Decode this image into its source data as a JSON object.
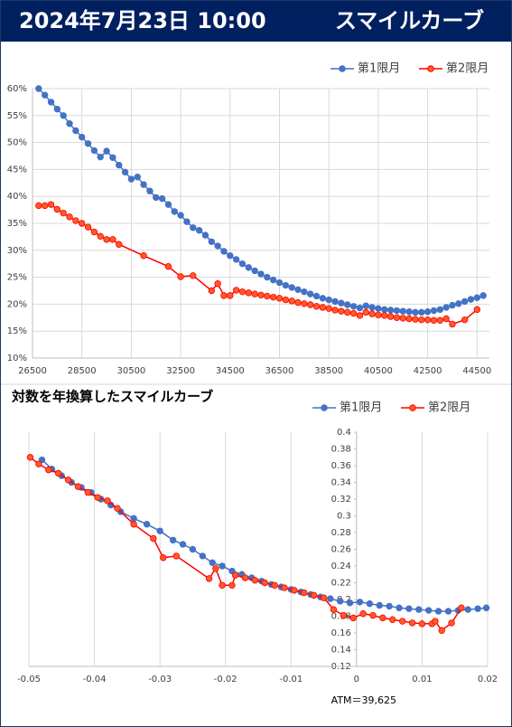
{
  "header": {
    "date": "2024年7月23日 10:00",
    "title": "スマイルカーブ"
  },
  "chart_data": [
    {
      "type": "line",
      "grid": "both",
      "legend": "top-right",
      "xlim": [
        26500,
        45000
      ],
      "xticks": [
        26500,
        28500,
        30500,
        32500,
        34500,
        36500,
        38500,
        40500,
        42500,
        44500
      ],
      "ylim": [
        10,
        60
      ],
      "yticks": [
        {
          "value": 10,
          "label": "10%"
        },
        {
          "value": 15,
          "label": "15%"
        },
        {
          "value": 20,
          "label": "20%"
        },
        {
          "value": 25,
          "label": "25%"
        },
        {
          "value": 30,
          "label": "30%"
        },
        {
          "value": 35,
          "label": "35%"
        },
        {
          "value": 40,
          "label": "40%"
        },
        {
          "value": 45,
          "label": "45%"
        },
        {
          "value": 50,
          "label": "50%"
        },
        {
          "value": 55,
          "label": "55%"
        },
        {
          "value": 60,
          "label": "60%"
        }
      ],
      "series": [
        {
          "name": "第1限月",
          "color": "#4472c4",
          "marker_fill": "#4472c4",
          "x": [
            26750,
            27000,
            27250,
            27500,
            27750,
            28000,
            28250,
            28500,
            28750,
            29000,
            29250,
            29500,
            29750,
            30000,
            30250,
            30500,
            30750,
            31000,
            31250,
            31500,
            31750,
            32000,
            32250,
            32500,
            32750,
            33000,
            33250,
            33500,
            33750,
            34000,
            34250,
            34500,
            34750,
            35000,
            35250,
            35500,
            35750,
            36000,
            36250,
            36500,
            36750,
            37000,
            37250,
            37500,
            37750,
            38000,
            38250,
            38500,
            38750,
            39000,
            39250,
            39500,
            39750,
            40000,
            40250,
            40500,
            40750,
            41000,
            41250,
            41500,
            41750,
            42000,
            42250,
            42500,
            42750,
            43000,
            43250,
            43500,
            43750,
            44000,
            44250,
            44500,
            44750
          ],
          "values": [
            60,
            58.8,
            57.5,
            56.2,
            55,
            53.5,
            52.2,
            51,
            49.8,
            48.5,
            47.3,
            48.4,
            47.2,
            45.8,
            44.5,
            43.2,
            43.6,
            42.2,
            41,
            39.8,
            39.6,
            38.5,
            37.2,
            36.5,
            35.3,
            34.2,
            33.7,
            32.8,
            31.6,
            30.8,
            29.8,
            29,
            28.3,
            27.5,
            26.8,
            26.2,
            25.6,
            25,
            24.5,
            24,
            23.5,
            23.1,
            22.7,
            22.3,
            21.9,
            21.5,
            21.1,
            20.8,
            20.5,
            20.2,
            19.9,
            19.6,
            19.3,
            19.7,
            19.4,
            19.2,
            19,
            18.9,
            18.8,
            18.7,
            18.6,
            18.5,
            18.5,
            18.6,
            18.8,
            19,
            19.4,
            19.8,
            20.1,
            20.5,
            20.9,
            21.2,
            21.6
          ]
        },
        {
          "name": "第2限月",
          "color": "#ff0000",
          "marker_fill": "#ff5a28",
          "x": [
            26750,
            27000,
            27250,
            27500,
            27750,
            28000,
            28250,
            28500,
            28750,
            29000,
            29250,
            29500,
            29750,
            30000,
            31000,
            32000,
            32500,
            33000,
            33750,
            34000,
            34250,
            34500,
            34750,
            35000,
            35250,
            35500,
            35750,
            36000,
            36250,
            36500,
            36750,
            37000,
            37250,
            37500,
            37750,
            38000,
            38250,
            38500,
            38750,
            39000,
            39250,
            39500,
            39750,
            40000,
            40250,
            40500,
            40750,
            41000,
            41250,
            41500,
            41750,
            42000,
            42250,
            42500,
            42750,
            43000,
            43250,
            43500,
            44000,
            44500
          ],
          "values": [
            38.3,
            38.3,
            38.5,
            37.6,
            36.9,
            36.2,
            35.5,
            35,
            34.3,
            33.4,
            32.6,
            32,
            32,
            31.1,
            29,
            27,
            25.1,
            25.3,
            22.5,
            23.8,
            21.6,
            21.6,
            22.6,
            22.3,
            22.1,
            21.9,
            21.7,
            21.5,
            21.3,
            21.1,
            20.8,
            20.6,
            20.3,
            20.1,
            19.9,
            19.6,
            19.4,
            19.2,
            18.9,
            18.7,
            18.5,
            18.3,
            17.9,
            18.5,
            18.2,
            18,
            17.9,
            17.7,
            17.5,
            17.4,
            17.3,
            17.2,
            17.1,
            17.1,
            17,
            17,
            17.3,
            16.3,
            17.1,
            19
          ]
        }
      ]
    },
    {
      "type": "line",
      "title": "対数を年換算したスマイルカーブ",
      "grid": "x",
      "legend": "top-right",
      "y_axis_crosses": 0,
      "annotation": "ATM＝39,625",
      "xlim": [
        -0.05,
        0.02
      ],
      "xticks": [
        -0.05,
        -0.04,
        -0.03,
        -0.02,
        -0.01,
        0,
        0.01,
        0.02
      ],
      "ylim": [
        0.12,
        0.4
      ],
      "yticks": [
        0.12,
        0.14,
        0.16,
        0.18,
        0.2,
        0.22,
        0.24,
        0.26,
        0.28,
        0.3,
        0.32,
        0.34,
        0.36,
        0.38,
        0.4
      ],
      "series": [
        {
          "name": "第1限月",
          "color": "#4472c4",
          "marker_fill": "#4472c4",
          "x": [
            -0.048,
            -0.0465,
            -0.045,
            -0.0435,
            -0.042,
            -0.0405,
            -0.039,
            -0.0375,
            -0.036,
            -0.034,
            -0.032,
            -0.03,
            -0.028,
            -0.0265,
            -0.025,
            -0.0235,
            -0.022,
            -0.0205,
            -0.019,
            -0.0175,
            -0.016,
            -0.0145,
            -0.013,
            -0.0115,
            -0.01,
            -0.0085,
            -0.007,
            -0.0055,
            -0.004,
            -0.0025,
            -0.001,
            0.0005,
            0.002,
            0.0035,
            0.005,
            0.0065,
            0.008,
            0.0095,
            0.011,
            0.0125,
            0.014,
            0.0155,
            0.017,
            0.0185,
            0.0198
          ],
          "values": [
            0.367,
            0.356,
            0.348,
            0.34,
            0.334,
            0.328,
            0.32,
            0.313,
            0.305,
            0.297,
            0.29,
            0.282,
            0.271,
            0.266,
            0.26,
            0.252,
            0.244,
            0.24,
            0.234,
            0.23,
            0.226,
            0.222,
            0.218,
            0.215,
            0.212,
            0.209,
            0.206,
            0.203,
            0.201,
            0.198,
            0.196,
            0.197,
            0.195,
            0.193,
            0.192,
            0.19,
            0.189,
            0.188,
            0.187,
            0.186,
            0.186,
            0.187,
            0.188,
            0.189,
            0.19
          ]
        },
        {
          "name": "第2限月",
          "color": "#ff0000",
          "marker_fill": "#ff5a28",
          "x": [
            -0.0498,
            -0.0485,
            -0.047,
            -0.0455,
            -0.044,
            -0.0425,
            -0.041,
            -0.0395,
            -0.038,
            -0.0365,
            -0.034,
            -0.031,
            -0.0295,
            -0.0275,
            -0.0225,
            -0.0215,
            -0.0205,
            -0.019,
            -0.0185,
            -0.017,
            -0.0155,
            -0.014,
            -0.0125,
            -0.011,
            -0.0095,
            -0.008,
            -0.0065,
            -0.005,
            -0.0035,
            -0.002,
            -0.0005,
            0.001,
            0.0025,
            0.004,
            0.0055,
            0.007,
            0.0085,
            0.01,
            0.0115,
            0.012,
            0.013,
            0.0145,
            0.016
          ],
          "values": [
            0.37,
            0.362,
            0.355,
            0.351,
            0.343,
            0.335,
            0.328,
            0.322,
            0.318,
            0.309,
            0.29,
            0.273,
            0.25,
            0.252,
            0.225,
            0.237,
            0.217,
            0.217,
            0.229,
            0.226,
            0.223,
            0.22,
            0.217,
            0.214,
            0.211,
            0.208,
            0.205,
            0.202,
            0.188,
            0.181,
            0.178,
            0.183,
            0.181,
            0.178,
            0.176,
            0.174,
            0.172,
            0.171,
            0.171,
            0.174,
            0.163,
            0.172,
            0.19
          ]
        }
      ]
    }
  ]
}
